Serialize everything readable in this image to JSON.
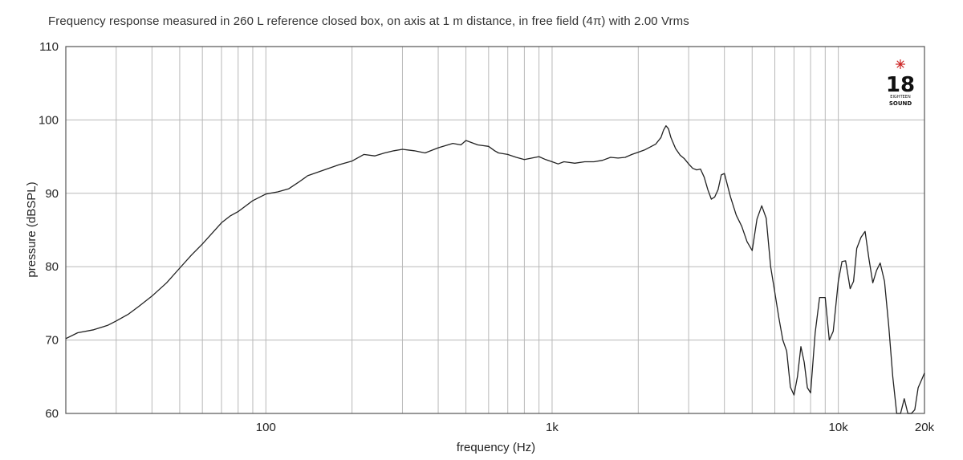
{
  "chart_data": {
    "type": "line",
    "title": "Frequency response measured in 260 L reference closed box, on axis at 1 m distance, in free field (4π) with 2.00 Vrms",
    "xlabel": "frequency (Hz)",
    "ylabel": "pressure (dBSPL)",
    "xscale": "log",
    "xlim": [
      20,
      20000
    ],
    "ylim": [
      60,
      110
    ],
    "x_ticks": [
      {
        "value": 100,
        "label": "100"
      },
      {
        "value": 1000,
        "label": "1k"
      },
      {
        "value": 10000,
        "label": "10k"
      },
      {
        "value": 20000,
        "label": "20k"
      }
    ],
    "y_ticks": [
      60,
      70,
      80,
      90,
      100,
      110
    ],
    "grid": true,
    "line_color": "#222222",
    "series": [
      {
        "x": [
          20,
          22,
          25,
          28,
          30,
          33,
          36,
          40,
          45,
          50,
          55,
          60,
          65,
          70,
          75,
          80,
          90,
          100,
          110,
          120,
          130,
          140,
          160,
          180,
          200,
          220,
          240,
          260,
          280,
          300,
          330,
          360,
          400,
          450,
          480,
          500,
          550,
          600,
          630,
          650,
          700,
          750,
          800,
          850,
          900,
          950,
          1000,
          1050,
          1100,
          1150,
          1200,
          1300,
          1400,
          1500,
          1600,
          1700,
          1800,
          1900,
          2000,
          2100,
          2200,
          2300,
          2400,
          2450,
          2500,
          2550,
          2600,
          2700,
          2800,
          2900,
          3000,
          3100,
          3200,
          3300,
          3400,
          3500,
          3600,
          3700,
          3800,
          3900,
          4000,
          4200,
          4400,
          4600,
          4800,
          5000,
          5200,
          5400,
          5600,
          5800,
          6000,
          6200,
          6400,
          6600,
          6800,
          7000,
          7200,
          7400,
          7600,
          7800,
          8000,
          8300,
          8600,
          9000,
          9300,
          9600,
          10000,
          10300,
          10600,
          11000,
          11300,
          11600,
          12000,
          12400,
          12800,
          13200,
          13600,
          14000,
          14500,
          15000,
          15500,
          16000,
          16500,
          17000,
          17500,
          18000,
          18500,
          19000,
          19500,
          20000
        ],
        "y": [
          70.2,
          71.0,
          71.4,
          72.0,
          72.6,
          73.5,
          74.6,
          76.0,
          77.8,
          79.8,
          81.6,
          83.1,
          84.6,
          86.0,
          86.9,
          87.5,
          89.0,
          89.9,
          90.2,
          90.6,
          91.5,
          92.4,
          93.2,
          93.9,
          94.4,
          95.3,
          95.1,
          95.5,
          95.8,
          96.0,
          95.8,
          95.5,
          96.2,
          96.8,
          96.6,
          97.2,
          96.6,
          96.4,
          95.8,
          95.5,
          95.3,
          94.9,
          94.6,
          94.8,
          95.0,
          94.6,
          94.3,
          94.0,
          94.3,
          94.2,
          94.1,
          94.3,
          94.3,
          94.5,
          94.9,
          94.8,
          94.9,
          95.3,
          95.6,
          95.9,
          96.3,
          96.7,
          97.6,
          98.6,
          99.2,
          98.8,
          97.6,
          96.1,
          95.2,
          94.7,
          94.0,
          93.4,
          93.2,
          93.3,
          92.2,
          90.5,
          89.2,
          89.5,
          90.5,
          92.5,
          92.7,
          89.5,
          87.0,
          85.5,
          83.4,
          82.2,
          86.5,
          88.3,
          86.6,
          80.0,
          76.5,
          73.0,
          70.0,
          68.5,
          63.6,
          62.5,
          65.0,
          69.1,
          67.0,
          63.5,
          62.8,
          71.0,
          75.8,
          75.8,
          70.0,
          71.2,
          78.0,
          80.7,
          80.8,
          77.0,
          78.0,
          82.5,
          84.0,
          84.8,
          81.0,
          77.8,
          79.5,
          80.5,
          78.0,
          72.0,
          65.0,
          59.5,
          60.0,
          62.0,
          59.0,
          57.5,
          60.5,
          63.5,
          64.5,
          65.5
        ]
      }
    ]
  },
  "logo": {
    "text": "18",
    "small_text": "EIGHTEEN",
    "word_text": "SOUND",
    "star_color": "#cc2222"
  }
}
